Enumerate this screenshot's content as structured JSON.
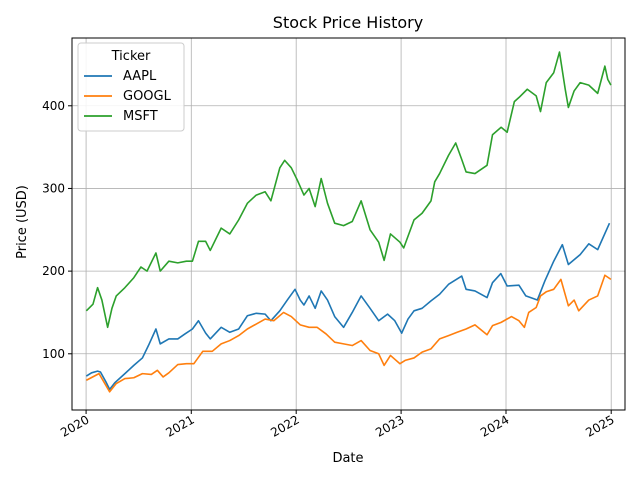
{
  "chart_data": {
    "type": "line",
    "title": "Stock Price History",
    "xlabel": "Date",
    "ylabel": "Price (USD)",
    "x_ticks": [
      "2020",
      "2021",
      "2022",
      "2023",
      "2024",
      "2025"
    ],
    "y_ticks": [
      100,
      200,
      300,
      400
    ],
    "xlim": [
      "2019-11-13",
      "2025-02-18"
    ],
    "ylim": [
      32,
      482
    ],
    "grid": true,
    "legend": {
      "title": "Ticker",
      "placement": "top-left"
    },
    "series": [
      {
        "name": "AAPL",
        "color": "#1f77b4",
        "points": [
          [
            "2020-01-02",
            73
          ],
          [
            "2020-01-20",
            77
          ],
          [
            "2020-02-10",
            79
          ],
          [
            "2020-02-20",
            78
          ],
          [
            "2020-03-10",
            66
          ],
          [
            "2020-03-23",
            57
          ],
          [
            "2020-04-10",
            65
          ],
          [
            "2020-05-15",
            76
          ],
          [
            "2020-06-15",
            86
          ],
          [
            "2020-07-15",
            95
          ],
          [
            "2020-08-05",
            110
          ],
          [
            "2020-08-31",
            130
          ],
          [
            "2020-09-15",
            112
          ],
          [
            "2020-10-15",
            118
          ],
          [
            "2020-11-15",
            118
          ],
          [
            "2020-12-10",
            124
          ],
          [
            "2021-01-05",
            130
          ],
          [
            "2021-01-26",
            140
          ],
          [
            "2021-02-20",
            125
          ],
          [
            "2021-03-08",
            118
          ],
          [
            "2021-04-15",
            132
          ],
          [
            "2021-05-15",
            126
          ],
          [
            "2021-06-15",
            130
          ],
          [
            "2021-07-15",
            146
          ],
          [
            "2021-08-15",
            149
          ],
          [
            "2021-09-15",
            148
          ],
          [
            "2021-10-05",
            140
          ],
          [
            "2021-11-05",
            152
          ],
          [
            "2021-12-01",
            165
          ],
          [
            "2021-12-28",
            178
          ],
          [
            "2022-01-15",
            165
          ],
          [
            "2022-01-28",
            159
          ],
          [
            "2022-02-15",
            170
          ],
          [
            "2022-03-08",
            155
          ],
          [
            "2022-03-29",
            176
          ],
          [
            "2022-04-20",
            165
          ],
          [
            "2022-05-15",
            145
          ],
          [
            "2022-06-15",
            132
          ],
          [
            "2022-07-15",
            150
          ],
          [
            "2022-08-15",
            170
          ],
          [
            "2022-09-15",
            155
          ],
          [
            "2022-10-15",
            140
          ],
          [
            "2022-11-15",
            148
          ],
          [
            "2022-12-10",
            140
          ],
          [
            "2023-01-03",
            125
          ],
          [
            "2023-01-25",
            142
          ],
          [
            "2023-02-15",
            152
          ],
          [
            "2023-03-15",
            155
          ],
          [
            "2023-04-15",
            164
          ],
          [
            "2023-05-15",
            172
          ],
          [
            "2023-06-15",
            184
          ],
          [
            "2023-07-31",
            194
          ],
          [
            "2023-08-15",
            178
          ],
          [
            "2023-09-15",
            176
          ],
          [
            "2023-10-27",
            168
          ],
          [
            "2023-11-15",
            186
          ],
          [
            "2023-12-14",
            197
          ],
          [
            "2024-01-05",
            182
          ],
          [
            "2024-02-15",
            183
          ],
          [
            "2024-03-10",
            170
          ],
          [
            "2024-04-19",
            165
          ],
          [
            "2024-05-15",
            188
          ],
          [
            "2024-06-15",
            212
          ],
          [
            "2024-07-15",
            232
          ],
          [
            "2024-08-05",
            208
          ],
          [
            "2024-09-15",
            220
          ],
          [
            "2024-10-15",
            233
          ],
          [
            "2024-11-15",
            226
          ],
          [
            "2024-12-26",
            258
          ]
        ]
      },
      {
        "name": "GOOGL",
        "color": "#ff7f0e",
        "points": [
          [
            "2020-01-02",
            68
          ],
          [
            "2020-02-15",
            76
          ],
          [
            "2020-03-23",
            54
          ],
          [
            "2020-04-15",
            64
          ],
          [
            "2020-05-15",
            70
          ],
          [
            "2020-06-15",
            71
          ],
          [
            "2020-07-15",
            76
          ],
          [
            "2020-08-15",
            75
          ],
          [
            "2020-09-05",
            80
          ],
          [
            "2020-09-25",
            72
          ],
          [
            "2020-10-15",
            77
          ],
          [
            "2020-11-15",
            87
          ],
          [
            "2020-12-15",
            88
          ],
          [
            "2021-01-10",
            88
          ],
          [
            "2021-02-10",
            103
          ],
          [
            "2021-03-15",
            103
          ],
          [
            "2021-04-15",
            112
          ],
          [
            "2021-05-15",
            116
          ],
          [
            "2021-06-15",
            122
          ],
          [
            "2021-07-15",
            130
          ],
          [
            "2021-08-15",
            136
          ],
          [
            "2021-09-15",
            142
          ],
          [
            "2021-10-15",
            140
          ],
          [
            "2021-11-18",
            150
          ],
          [
            "2021-12-15",
            145
          ],
          [
            "2022-01-15",
            135
          ],
          [
            "2022-02-15",
            132
          ],
          [
            "2022-03-15",
            132
          ],
          [
            "2022-04-15",
            124
          ],
          [
            "2022-05-15",
            114
          ],
          [
            "2022-06-15",
            112
          ],
          [
            "2022-07-15",
            110
          ],
          [
            "2022-08-15",
            116
          ],
          [
            "2022-09-15",
            104
          ],
          [
            "2022-10-15",
            100
          ],
          [
            "2022-11-03",
            86
          ],
          [
            "2022-11-25",
            98
          ],
          [
            "2022-12-28",
            88
          ],
          [
            "2023-01-15",
            92
          ],
          [
            "2023-02-15",
            95
          ],
          [
            "2023-03-15",
            102
          ],
          [
            "2023-04-15",
            106
          ],
          [
            "2023-05-15",
            118
          ],
          [
            "2023-06-15",
            122
          ],
          [
            "2023-07-15",
            126
          ],
          [
            "2023-08-15",
            130
          ],
          [
            "2023-09-15",
            135
          ],
          [
            "2023-10-27",
            123
          ],
          [
            "2023-11-15",
            134
          ],
          [
            "2023-12-15",
            138
          ],
          [
            "2024-01-20",
            145
          ],
          [
            "2024-02-15",
            140
          ],
          [
            "2024-03-05",
            132
          ],
          [
            "2024-03-20",
            150
          ],
          [
            "2024-04-15",
            156
          ],
          [
            "2024-04-30",
            170
          ],
          [
            "2024-05-20",
            175
          ],
          [
            "2024-06-15",
            178
          ],
          [
            "2024-07-10",
            190
          ],
          [
            "2024-08-05",
            158
          ],
          [
            "2024-08-25",
            165
          ],
          [
            "2024-09-10",
            152
          ],
          [
            "2024-10-15",
            165
          ],
          [
            "2024-11-15",
            170
          ],
          [
            "2024-12-10",
            195
          ],
          [
            "2024-12-31",
            190
          ]
        ]
      },
      {
        "name": "MSFT",
        "color": "#2ca02c",
        "points": [
          [
            "2020-01-02",
            152
          ],
          [
            "2020-01-25",
            160
          ],
          [
            "2020-02-10",
            180
          ],
          [
            "2020-02-25",
            165
          ],
          [
            "2020-03-16",
            132
          ],
          [
            "2020-03-31",
            155
          ],
          [
            "2020-04-15",
            170
          ],
          [
            "2020-05-15",
            180
          ],
          [
            "2020-06-15",
            192
          ],
          [
            "2020-07-10",
            205
          ],
          [
            "2020-07-31",
            200
          ],
          [
            "2020-08-31",
            222
          ],
          [
            "2020-09-15",
            200
          ],
          [
            "2020-10-15",
            212
          ],
          [
            "2020-11-15",
            210
          ],
          [
            "2020-12-15",
            212
          ],
          [
            "2021-01-05",
            212
          ],
          [
            "2021-01-26",
            236
          ],
          [
            "2021-02-20",
            236
          ],
          [
            "2021-03-08",
            225
          ],
          [
            "2021-04-15",
            252
          ],
          [
            "2021-05-15",
            245
          ],
          [
            "2021-06-15",
            262
          ],
          [
            "2021-07-15",
            282
          ],
          [
            "2021-08-15",
            292
          ],
          [
            "2021-09-15",
            296
          ],
          [
            "2021-10-05",
            285
          ],
          [
            "2021-11-05",
            325
          ],
          [
            "2021-11-22",
            334
          ],
          [
            "2021-12-15",
            325
          ],
          [
            "2022-01-05",
            310
          ],
          [
            "2022-01-28",
            292
          ],
          [
            "2022-02-15",
            300
          ],
          [
            "2022-03-08",
            278
          ],
          [
            "2022-03-29",
            312
          ],
          [
            "2022-04-20",
            282
          ],
          [
            "2022-05-15",
            258
          ],
          [
            "2022-06-15",
            255
          ],
          [
            "2022-07-15",
            260
          ],
          [
            "2022-08-15",
            285
          ],
          [
            "2022-09-15",
            250
          ],
          [
            "2022-10-15",
            235
          ],
          [
            "2022-11-03",
            213
          ],
          [
            "2022-11-25",
            245
          ],
          [
            "2022-12-28",
            235
          ],
          [
            "2023-01-10",
            228
          ],
          [
            "2023-02-15",
            262
          ],
          [
            "2023-03-15",
            270
          ],
          [
            "2023-04-15",
            285
          ],
          [
            "2023-04-28",
            308
          ],
          [
            "2023-05-15",
            318
          ],
          [
            "2023-06-15",
            340
          ],
          [
            "2023-07-10",
            355
          ],
          [
            "2023-07-31",
            335
          ],
          [
            "2023-08-15",
            320
          ],
          [
            "2023-09-15",
            318
          ],
          [
            "2023-10-27",
            328
          ],
          [
            "2023-11-15",
            365
          ],
          [
            "2023-12-15",
            374
          ],
          [
            "2024-01-05",
            368
          ],
          [
            "2024-01-30",
            405
          ],
          [
            "2024-02-15",
            410
          ],
          [
            "2024-03-15",
            420
          ],
          [
            "2024-04-15",
            412
          ],
          [
            "2024-04-30",
            393
          ],
          [
            "2024-05-20",
            428
          ],
          [
            "2024-06-15",
            440
          ],
          [
            "2024-07-05",
            465
          ],
          [
            "2024-07-25",
            420
          ],
          [
            "2024-08-05",
            398
          ],
          [
            "2024-08-25",
            418
          ],
          [
            "2024-09-15",
            428
          ],
          [
            "2024-10-15",
            425
          ],
          [
            "2024-11-15",
            415
          ],
          [
            "2024-12-10",
            448
          ],
          [
            "2024-12-20",
            432
          ],
          [
            "2024-12-31",
            425
          ]
        ]
      }
    ]
  }
}
